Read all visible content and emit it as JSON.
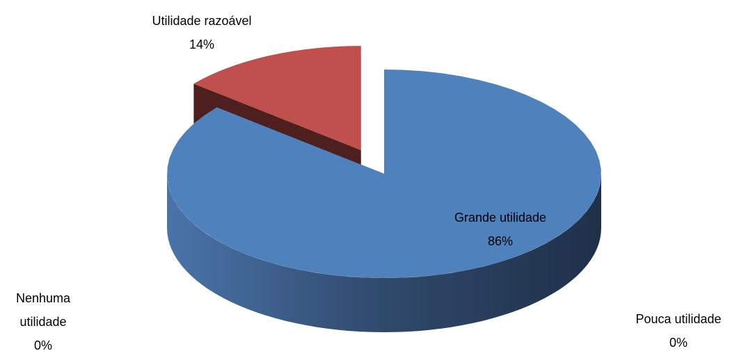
{
  "chart_data": {
    "type": "pie",
    "style": "3d",
    "exploded": "Utilidade razoável",
    "categories": [
      "Grande utilidade",
      "Utilidade razoável",
      "Pouca utilidade",
      "Nenhuma utilidade"
    ],
    "values": [
      86,
      14,
      0,
      0
    ],
    "value_labels": [
      "86%",
      "14%",
      "0%",
      "0%"
    ],
    "colors": [
      "#4f81bd",
      "#c0504d"
    ]
  }
}
